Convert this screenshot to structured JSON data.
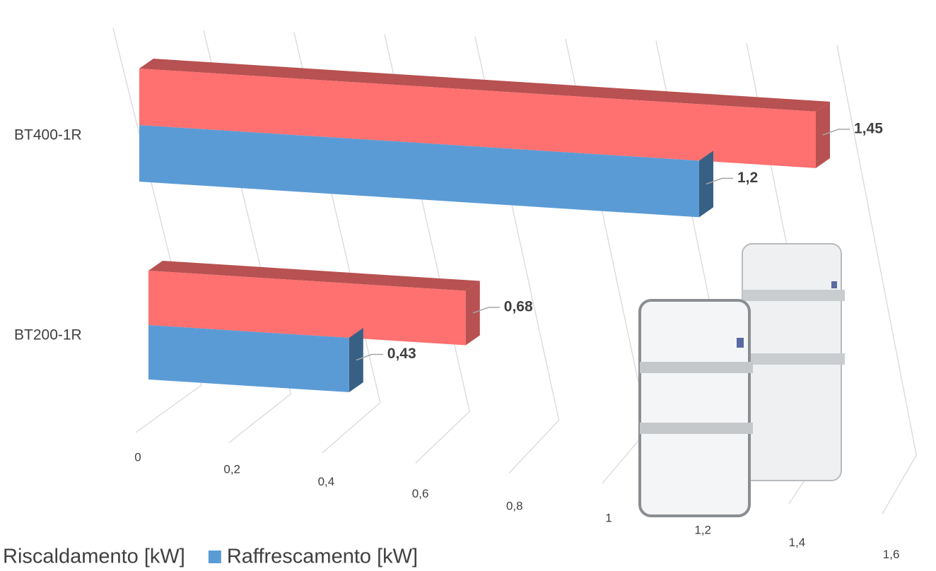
{
  "chart_data": {
    "type": "bar3d",
    "categories": [
      "BT400-1R",
      "BT200-1R"
    ],
    "series": [
      {
        "name": "Riscaldamento [kW]",
        "color": "#ff7070",
        "values": [
          1.45,
          0.68
        ],
        "value_labels": [
          "1,45",
          "0,68"
        ]
      },
      {
        "name": "Raffrescamento [kW]",
        "color": "#5b9bd5",
        "values": [
          1.2,
          0.43
        ],
        "value_labels": [
          "1,2",
          "0,43"
        ]
      }
    ],
    "xlim": [
      0,
      1.6
    ],
    "xticks": [
      0,
      {
        "value": 0.2,
        "label": "0,2"
      },
      {
        "value": 0.4,
        "label": "0,4"
      },
      {
        "value": 0.6,
        "label": "0,6"
      },
      {
        "value": 0.8,
        "label": "0,8"
      },
      1,
      {
        "value": 1.2,
        "label": "1,2"
      },
      {
        "value": 1.4,
        "label": "1,4"
      },
      {
        "value": 1.6,
        "label": "1,6"
      }
    ],
    "grid": true,
    "legend": "bottom"
  }
}
